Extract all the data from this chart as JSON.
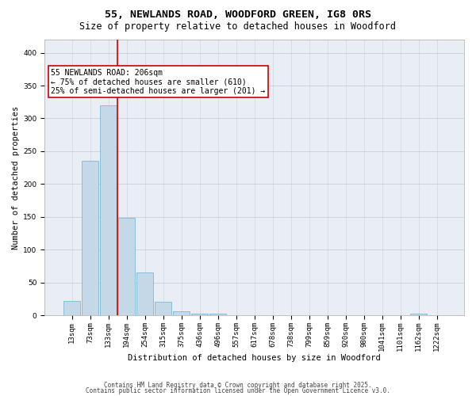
{
  "title1": "55, NEWLANDS ROAD, WOODFORD GREEN, IG8 0RS",
  "title2": "Size of property relative to detached houses in Woodford",
  "xlabel": "Distribution of detached houses by size in Woodford",
  "ylabel": "Number of detached properties",
  "bar_labels": [
    "13sqm",
    "73sqm",
    "133sqm",
    "194sqm",
    "254sqm",
    "315sqm",
    "375sqm",
    "436sqm",
    "496sqm",
    "557sqm",
    "617sqm",
    "678sqm",
    "738sqm",
    "799sqm",
    "859sqm",
    "920sqm",
    "980sqm",
    "1041sqm",
    "1101sqm",
    "1162sqm",
    "1222sqm"
  ],
  "bar_values": [
    22,
    235,
    320,
    148,
    65,
    21,
    6,
    3,
    2,
    0,
    0,
    0,
    0,
    0,
    0,
    0,
    0,
    0,
    0,
    2,
    0
  ],
  "bar_color": "#c5d8e8",
  "bar_edge_color": "#6aafd4",
  "red_line_index": 3,
  "red_line_color": "#cc0000",
  "annotation_text": "55 NEWLANDS ROAD: 206sqm\n← 75% of detached houses are smaller (610)\n25% of semi-detached houses are larger (201) →",
  "annotation_box_color": "white",
  "annotation_box_edge_color": "#cc0000",
  "ylim": [
    0,
    420
  ],
  "yticks": [
    0,
    50,
    100,
    150,
    200,
    250,
    300,
    350,
    400
  ],
  "grid_color": "#c8d0d8",
  "background_color": "#e8eef4",
  "footer_line1": "Contains HM Land Registry data © Crown copyright and database right 2025.",
  "footer_line2": "Contains public sector information licensed under the Open Government Licence v3.0.",
  "title_fontsize": 9.5,
  "subtitle_fontsize": 8.5,
  "axis_label_fontsize": 7.5,
  "tick_fontsize": 6.5,
  "annotation_fontsize": 7,
  "footer_fontsize": 5.5
}
